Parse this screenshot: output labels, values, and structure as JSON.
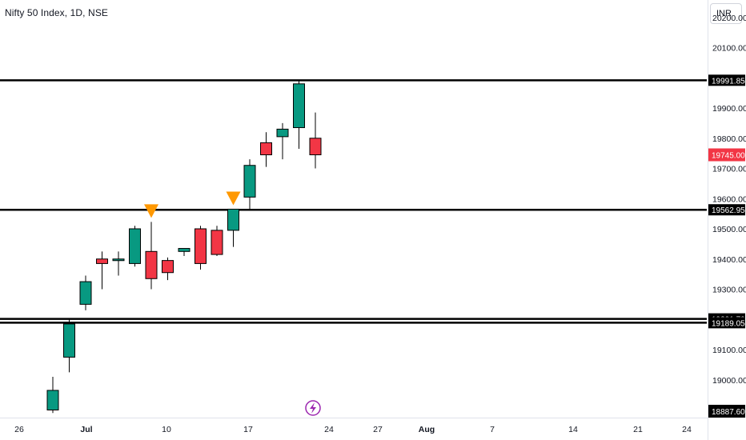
{
  "header": {
    "symbol": "Nifty 50 Index, 1D, NSE",
    "currency": "INR"
  },
  "colors": {
    "up": "#089981",
    "down": "#f23645",
    "level_line": "#000000",
    "marker": "#ff9800",
    "lightning": "#9c27b0",
    "axis_text": "#131722"
  },
  "icons": {
    "event_marker": "lightning-icon",
    "signal_marker": "down-triangle-marker"
  },
  "chart_data": {
    "type": "candlestick",
    "title": "Nifty 50 Index, 1D, NSE",
    "x_tick_labels": [
      "26",
      "Jul",
      "10",
      "17",
      "24",
      "27",
      "Aug",
      "7",
      "14",
      "21",
      "24"
    ],
    "y_tick_labels": [
      "20200.00",
      "20100.00",
      "19900.00",
      "19800.00",
      "19700.00",
      "19600.00",
      "19500.00",
      "19400.00",
      "19300.00",
      "19100.00",
      "19000.00"
    ],
    "ylim": [
      18887.6,
      20250
    ],
    "candles": [
      {
        "o": 18900,
        "h": 19010,
        "l": 18890,
        "c": 18965
      },
      {
        "o": 19075,
        "h": 19200,
        "l": 19025,
        "c": 19185
      },
      {
        "o": 19250,
        "h": 19345,
        "l": 19230,
        "c": 19325
      },
      {
        "o": 19400,
        "h": 19425,
        "l": 19300,
        "c": 19385
      },
      {
        "o": 19395,
        "h": 19425,
        "l": 19345,
        "c": 19400
      },
      {
        "o": 19385,
        "h": 19510,
        "l": 19375,
        "c": 19500
      },
      {
        "o": 19425,
        "h": 19523,
        "l": 19300,
        "c": 19335
      },
      {
        "o": 19395,
        "h": 19405,
        "l": 19330,
        "c": 19355
      },
      {
        "o": 19425,
        "h": 19435,
        "l": 19410,
        "c": 19435
      },
      {
        "o": 19500,
        "h": 19510,
        "l": 19365,
        "c": 19385
      },
      {
        "o": 19495,
        "h": 19510,
        "l": 19410,
        "c": 19415
      },
      {
        "o": 19495,
        "h": 19565,
        "l": 19440,
        "c": 19565
      },
      {
        "o": 19605,
        "h": 19730,
        "l": 19565,
        "c": 19710
      },
      {
        "o": 19785,
        "h": 19820,
        "l": 19705,
        "c": 19745
      },
      {
        "o": 19805,
        "h": 19850,
        "l": 19730,
        "c": 19830
      },
      {
        "o": 19835,
        "h": 19990,
        "l": 19765,
        "c": 19980
      },
      {
        "o": 19800,
        "h": 19885,
        "l": 19700,
        "c": 19745
      }
    ],
    "levels": [
      {
        "value": 19991.85,
        "label": "19991.85"
      },
      {
        "value": 19562.95,
        "label": "19562.95"
      },
      {
        "value": 19201.7,
        "label": "19201.70"
      },
      {
        "value": 19189.05,
        "label": "19189.05"
      }
    ],
    "last_price": {
      "value": 19745.0,
      "label": "19745.00"
    },
    "axis_bottom": {
      "value": 18887.6,
      "label": "18887.60"
    },
    "markers": [
      {
        "candle_index": 6,
        "type": "down-triangle"
      },
      {
        "candle_index": 11,
        "type": "down-triangle"
      }
    ]
  }
}
